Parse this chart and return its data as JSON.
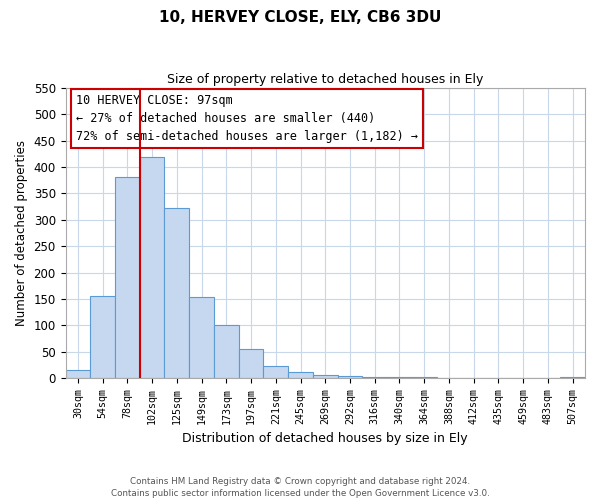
{
  "title": "10, HERVEY CLOSE, ELY, CB6 3DU",
  "subtitle": "Size of property relative to detached houses in Ely",
  "xlabel": "Distribution of detached houses by size in Ely",
  "ylabel": "Number of detached properties",
  "bar_labels": [
    "30sqm",
    "54sqm",
    "78sqm",
    "102sqm",
    "125sqm",
    "149sqm",
    "173sqm",
    "197sqm",
    "221sqm",
    "245sqm",
    "269sqm",
    "292sqm",
    "316sqm",
    "340sqm",
    "364sqm",
    "388sqm",
    "412sqm",
    "435sqm",
    "459sqm",
    "483sqm",
    "507sqm"
  ],
  "bar_values": [
    15,
    155,
    382,
    420,
    323,
    153,
    100,
    55,
    22,
    12,
    5,
    3,
    2,
    1,
    1,
    0,
    0,
    0,
    0,
    0,
    2
  ],
  "bar_color": "#c5d8f0",
  "bar_edge_color": "#5b9bd5",
  "ylim": [
    0,
    550
  ],
  "yticks": [
    0,
    50,
    100,
    150,
    200,
    250,
    300,
    350,
    400,
    450,
    500,
    550
  ],
  "vline_x_idx": 3,
  "vline_color": "#cc0000",
  "annotation_title": "10 HERVEY CLOSE: 97sqm",
  "annotation_line1": "← 27% of detached houses are smaller (440)",
  "annotation_line2": "72% of semi-detached houses are larger (1,182) →",
  "footer_line1": "Contains HM Land Registry data © Crown copyright and database right 2024.",
  "footer_line2": "Contains public sector information licensed under the Open Government Licence v3.0.",
  "background_color": "#ffffff",
  "grid_color": "#c8d8e8",
  "figsize": [
    6.0,
    5.0
  ],
  "dpi": 100
}
